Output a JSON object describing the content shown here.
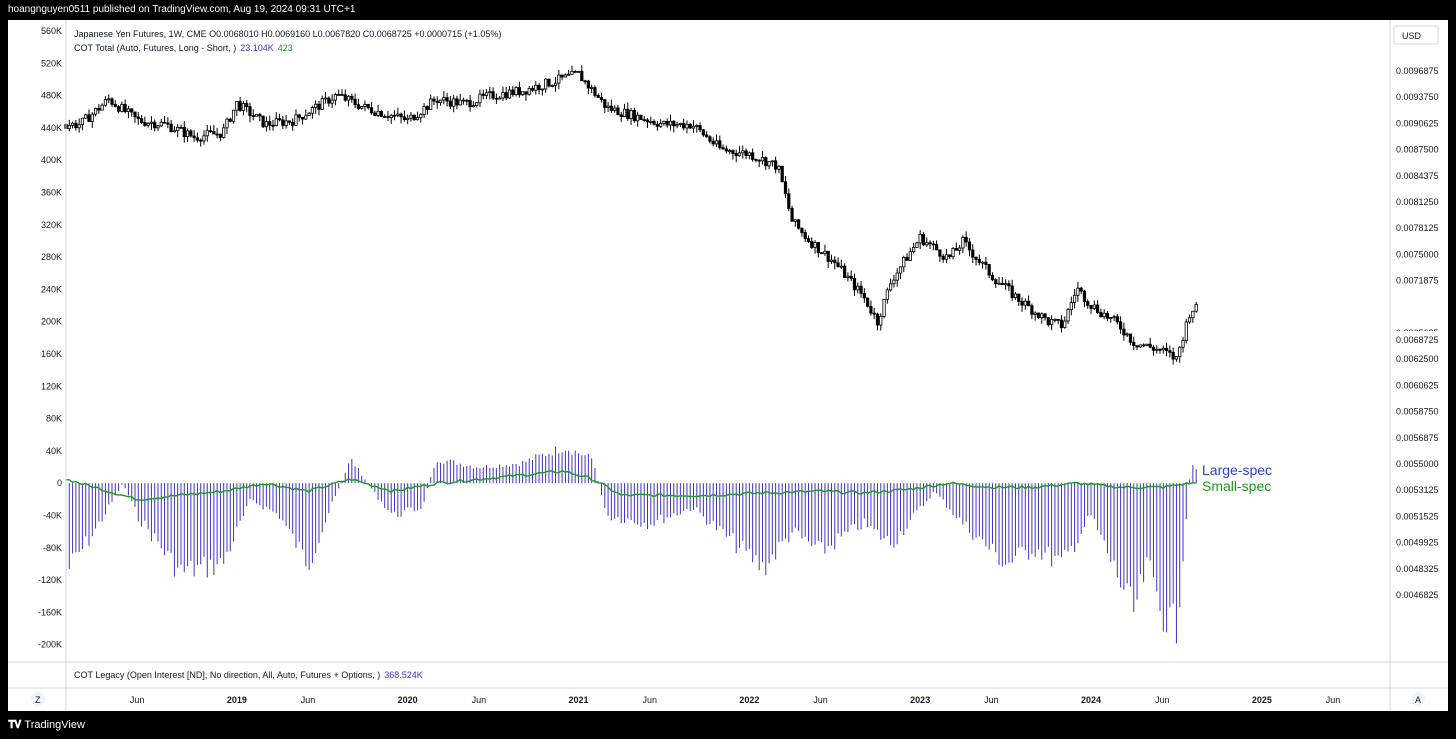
{
  "header": {
    "published_by": "hoangnguyen0511 published on TradingView.com, Aug 19, 2024 09:31 UTC+1"
  },
  "footer": {
    "brand": "TradingView",
    "brand_icon": "tradingview-logo-icon"
  },
  "chart_data": [
    {
      "type": "candlestick",
      "legend_line1": "Japanese Yen Futures, 1W, CME  O0.0068010  H0.0069160  L0.0067820  C0.0068725  +0.0000715 (+1.05%)",
      "indicator_label": "COT Total (Auto, Futures, Long - Short, )",
      "indicator_value_1": "23.104K",
      "indicator_value_2": "423",
      "currency_button": "USD",
      "last_price_label": "0.0068725",
      "y_right_ticks": [
        "0.0096875",
        "0.0093750",
        "0.0090625",
        "0.0087500",
        "0.0084375",
        "0.0081250",
        "0.0078125",
        "0.0075000",
        "0.0071875",
        "0.0068725",
        "0.0065625",
        "0.0062500",
        "0.0060625",
        "0.0058750",
        "0.0056875",
        "0.0055000",
        "0.0053125",
        "0.0051525",
        "0.0049925",
        "0.0048325",
        "0.0046825"
      ],
      "y_right_range": [
        0.0046,
        0.0101
      ],
      "x_ticks": [
        "Jun",
        "2019",
        "Jun",
        "2020",
        "Jun",
        "2021",
        "Jun",
        "2022",
        "Jun",
        "2023",
        "Jun",
        "2024",
        "Jun",
        "2025",
        "Jun"
      ],
      "x_range": [
        "2018-01",
        "2025-10"
      ],
      "close_anchors": [
        [
          "2018-02",
          0.00905
        ],
        [
          "2018-04",
          0.00935
        ],
        [
          "2018-06",
          0.0091
        ],
        [
          "2018-08",
          0.00905
        ],
        [
          "2018-10",
          0.0089
        ],
        [
          "2018-12",
          0.00895
        ],
        [
          "2019-01",
          0.0093
        ],
        [
          "2019-03",
          0.00905
        ],
        [
          "2019-05",
          0.0091
        ],
        [
          "2019-08",
          0.0094
        ],
        [
          "2019-10",
          0.00925
        ],
        [
          "2019-12",
          0.00915
        ],
        [
          "2020-01",
          0.0091
        ],
        [
          "2020-03",
          0.00935
        ],
        [
          "2020-05",
          0.0093
        ],
        [
          "2020-07",
          0.0094
        ],
        [
          "2020-09",
          0.00945
        ],
        [
          "2020-11",
          0.00955
        ],
        [
          "2021-01",
          0.00965
        ],
        [
          "2021-03",
          0.00925
        ],
        [
          "2021-05",
          0.00915
        ],
        [
          "2021-07",
          0.00905
        ],
        [
          "2021-09",
          0.00905
        ],
        [
          "2021-11",
          0.00875
        ],
        [
          "2022-01",
          0.0087
        ],
        [
          "2022-03",
          0.00855
        ],
        [
          "2022-04",
          0.0079
        ],
        [
          "2022-05",
          0.0077
        ],
        [
          "2022-07",
          0.0074
        ],
        [
          "2022-09",
          0.007
        ],
        [
          "2022-10",
          0.0067
        ],
        [
          "2022-11",
          0.0072
        ],
        [
          "2023-01",
          0.0077
        ],
        [
          "2023-03",
          0.00745
        ],
        [
          "2023-04",
          0.00765
        ],
        [
          "2023-06",
          0.00725
        ],
        [
          "2023-08",
          0.00695
        ],
        [
          "2023-10",
          0.0067
        ],
        [
          "2023-11",
          0.00665
        ],
        [
          "2023-12",
          0.0071
        ],
        [
          "2024-01",
          0.0069
        ],
        [
          "2024-03",
          0.00665
        ],
        [
          "2024-04",
          0.00645
        ],
        [
          "2024-06",
          0.00635
        ],
        [
          "2024-07",
          0.00625
        ],
        [
          "2024-08",
          0.00685
        ]
      ]
    },
    {
      "type": "bar+line",
      "y_left_ticks": [
        "560K",
        "520K",
        "480K",
        "440K",
        "400K",
        "360K",
        "320K",
        "280K",
        "240K",
        "200K",
        "160K",
        "120K",
        "80K",
        "40K",
        "0",
        "-40K",
        "-80K",
        "-120K",
        "-160K",
        "-200K"
      ],
      "y_left_range": [
        -200000,
        560000
      ],
      "series": [
        {
          "name": "Large-spec",
          "color": "#3d33c6"
        },
        {
          "name": "Small-spec",
          "color": "#1e9a1e"
        }
      ],
      "large_spec_anchors": [
        [
          "2018-01",
          -110000
        ],
        [
          "2018-03",
          -60000
        ],
        [
          "2018-05",
          0
        ],
        [
          "2018-06",
          -40000
        ],
        [
          "2018-09",
          -110000
        ],
        [
          "2018-12",
          -100000
        ],
        [
          "2019-02",
          -20000
        ],
        [
          "2019-04",
          -40000
        ],
        [
          "2019-06",
          -100000
        ],
        [
          "2019-09",
          30000
        ],
        [
          "2019-11",
          -20000
        ],
        [
          "2019-12",
          -40000
        ],
        [
          "2020-02",
          -30000
        ],
        [
          "2020-03",
          30000
        ],
        [
          "2020-06",
          20000
        ],
        [
          "2020-09",
          25000
        ],
        [
          "2020-12",
          45000
        ],
        [
          "2021-02",
          30000
        ],
        [
          "2021-03",
          -40000
        ],
        [
          "2021-06",
          -50000
        ],
        [
          "2021-09",
          -30000
        ],
        [
          "2021-11",
          -60000
        ],
        [
          "2022-02",
          -105000
        ],
        [
          "2022-04",
          -60000
        ],
        [
          "2022-06",
          -85000
        ],
        [
          "2022-09",
          -50000
        ],
        [
          "2022-11",
          -75000
        ],
        [
          "2023-02",
          -10000
        ],
        [
          "2023-04",
          -50000
        ],
        [
          "2023-07",
          -100000
        ],
        [
          "2023-09",
          -80000
        ],
        [
          "2023-11",
          -100000
        ],
        [
          "2024-01",
          -40000
        ],
        [
          "2024-03",
          -120000
        ],
        [
          "2024-04",
          -160000
        ],
        [
          "2024-05",
          -100000
        ],
        [
          "2024-06",
          -160000
        ],
        [
          "2024-07",
          -180000
        ],
        [
          "2024-08",
          20000
        ]
      ],
      "small_spec_anchors": [
        [
          "2018-01",
          5000
        ],
        [
          "2018-04",
          -10000
        ],
        [
          "2018-06",
          -20000
        ],
        [
          "2018-09",
          -15000
        ],
        [
          "2018-12",
          -10000
        ],
        [
          "2019-03",
          0
        ],
        [
          "2019-06",
          -10000
        ],
        [
          "2019-09",
          5000
        ],
        [
          "2019-12",
          -10000
        ],
        [
          "2020-03",
          0
        ],
        [
          "2020-06",
          5000
        ],
        [
          "2020-09",
          10000
        ],
        [
          "2020-12",
          15000
        ],
        [
          "2021-02",
          5000
        ],
        [
          "2021-04",
          -15000
        ],
        [
          "2021-07",
          -15000
        ],
        [
          "2021-10",
          -15000
        ],
        [
          "2022-02",
          -12000
        ],
        [
          "2022-06",
          -10000
        ],
        [
          "2022-09",
          -12000
        ],
        [
          "2022-12",
          -8000
        ],
        [
          "2023-03",
          0
        ],
        [
          "2023-06",
          -5000
        ],
        [
          "2023-09",
          -5000
        ],
        [
          "2023-12",
          0
        ],
        [
          "2024-03",
          -5000
        ],
        [
          "2024-06",
          -5000
        ],
        [
          "2024-08",
          0
        ]
      ],
      "oi_label": "COT Legacy (Open Interest [ND], No direction, All, Auto, Futures + Options, )",
      "oi_value": "368.524K",
      "corner_left": "Z",
      "corner_right": "A"
    }
  ]
}
